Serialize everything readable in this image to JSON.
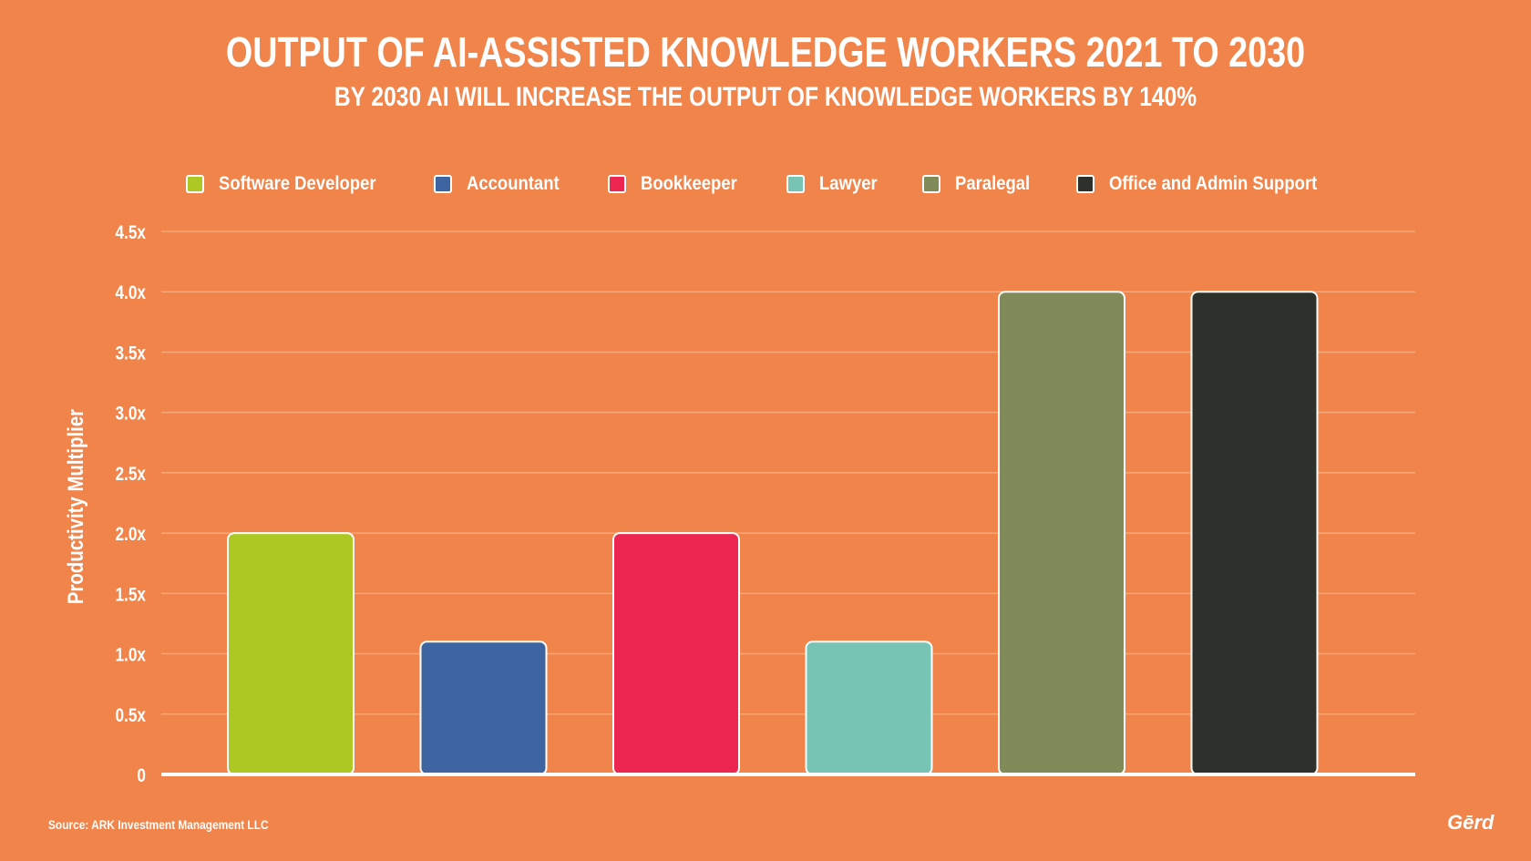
{
  "title": "OUTPUT OF AI-ASSISTED KNOWLEDGE WORKERS 2021 TO 2030",
  "subtitle": "BY 2030 AI WILL INCREASE THE OUTPUT OF KNOWLEDGE WORKERS BY 140%",
  "source": "Source: ARK Investment Management LLC",
  "logo": "Gērd",
  "colors": {
    "background": "#F0844A",
    "gridline": "#F6A878",
    "axis": "#FFFFFF"
  },
  "chart_data": {
    "type": "bar",
    "ylabel": "Productivity Multiplier",
    "ylim": [
      0,
      4.5
    ],
    "yticks": [
      "0",
      "0.5x",
      "1.0x",
      "1.5x",
      "2.0x",
      "2.5x",
      "3.0x",
      "3.5x",
      "4.0x",
      "4.5x"
    ],
    "grid": true,
    "legend_position": "top",
    "categories": [
      "Software Developer",
      "Accountant",
      "Bookkeeper",
      "Lawyer",
      "Paralegal",
      "Office and Admin Support"
    ],
    "values": [
      2.0,
      1.1,
      2.0,
      1.1,
      4.0,
      4.0
    ],
    "bar_colors": [
      "#ADC822",
      "#3E65A2",
      "#EC2650",
      "#77C3B4",
      "#818B59",
      "#2E302B"
    ]
  }
}
